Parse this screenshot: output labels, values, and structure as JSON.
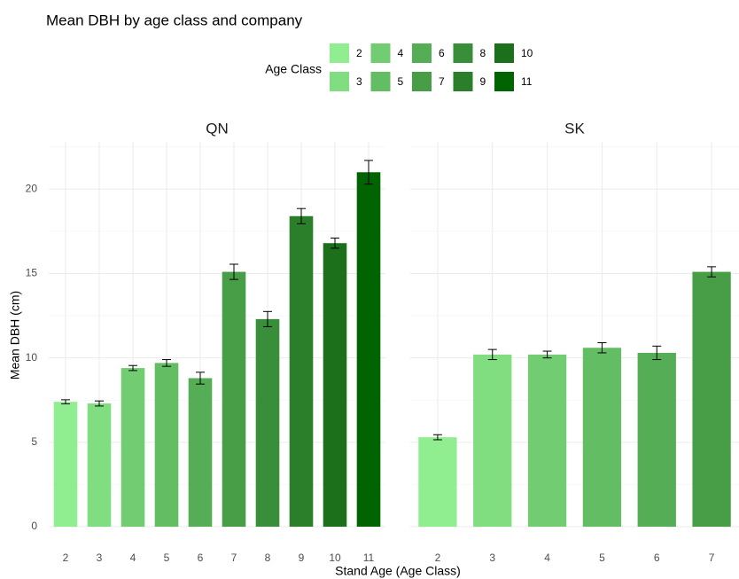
{
  "chart_data": {
    "type": "bar",
    "title": "Mean DBH by age class and company",
    "x_label": "Stand Age (Age Class)",
    "y_label": "Mean DBH (cm)",
    "legend": {
      "title": "Age Class",
      "items": [
        {
          "name": "2",
          "color": "#90ee90"
        },
        {
          "name": "3",
          "color": "#80dd80"
        },
        {
          "name": "4",
          "color": "#72cc72"
        },
        {
          "name": "5",
          "color": "#63bd63"
        },
        {
          "name": "6",
          "color": "#55ad55"
        },
        {
          "name": "7",
          "color": "#479e47"
        },
        {
          "name": "8",
          "color": "#398e39"
        },
        {
          "name": "9",
          "color": "#2b7f2b"
        },
        {
          "name": "10",
          "color": "#1c701c"
        },
        {
          "name": "11",
          "color": "#006400"
        }
      ]
    },
    "ylim": [
      0,
      22.8
    ],
    "yticks": [
      0,
      5,
      10,
      15,
      20
    ],
    "grid": true,
    "facets": [
      {
        "title": "QN",
        "categories": [
          "2",
          "3",
          "4",
          "5",
          "6",
          "7",
          "8",
          "9",
          "10",
          "11"
        ],
        "values": [
          7.4,
          7.3,
          9.4,
          9.7,
          8.8,
          15.1,
          12.3,
          18.4,
          16.8,
          21.0
        ],
        "errors": [
          0.12,
          0.15,
          0.15,
          0.2,
          0.35,
          0.45,
          0.45,
          0.45,
          0.3,
          0.7
        ]
      },
      {
        "title": "SK",
        "categories": [
          "2",
          "3",
          "4",
          "5",
          "6",
          "7"
        ],
        "values": [
          5.3,
          10.2,
          10.2,
          10.6,
          10.3,
          15.1
        ],
        "errors": [
          0.15,
          0.3,
          0.2,
          0.3,
          0.4,
          0.3
        ]
      }
    ]
  }
}
